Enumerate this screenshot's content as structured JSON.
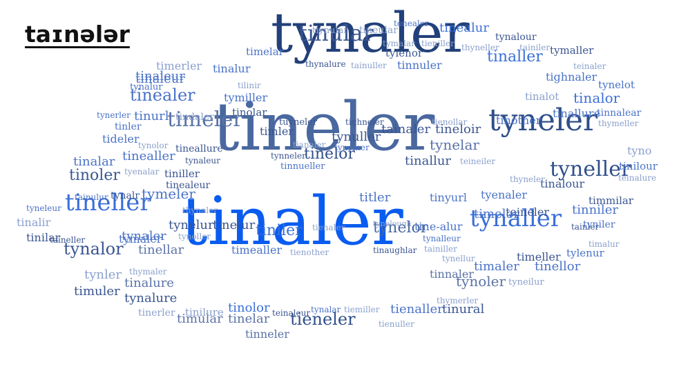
{
  "title": "taɪnələr",
  "palette": {
    "dark_navy": "#22407a",
    "navy": "#2f4f8a",
    "slate": "#4a68a0",
    "mid": "#5a7cc4",
    "royal": "#3a6fd8",
    "bright": "#0a5cf0",
    "light": "#8aa0cc",
    "pale": "#a6b6d6"
  },
  "words": [
    {
      "text": "tinaler",
      "size": 96,
      "color": "#0a5cf0"
    },
    {
      "text": "tineler",
      "size": 96,
      "color": "#4a68a0"
    },
    {
      "text": "tynaler",
      "size": 80,
      "color": "#22407a"
    },
    {
      "text": "tyneler",
      "size": 44,
      "color": "#2f4f8a"
    },
    {
      "text": "tinular",
      "size": 32,
      "color": "#3a5590"
    },
    {
      "text": "timeler",
      "size": 30,
      "color": "#5a72a6"
    },
    {
      "text": "tineller",
      "size": 34,
      "color": "#3a6fd8"
    },
    {
      "text": "tynaller",
      "size": 34,
      "color": "#3a6fd8"
    },
    {
      "text": "tyneller",
      "size": 30,
      "color": "#2f4f8a"
    },
    {
      "text": "tynalor",
      "size": 24,
      "color": "#3a5590"
    },
    {
      "text": "tieneler",
      "size": 24,
      "color": "#2f4f8a"
    },
    {
      "text": "tinealer",
      "size": 24,
      "color": "#4a72c8"
    },
    {
      "text": "tinoler",
      "size": 22,
      "color": "#3a5590"
    },
    {
      "text": "tinaller",
      "size": 22,
      "color": "#3a6fd8"
    },
    {
      "text": "tinelor",
      "size": 22,
      "color": "#2f4f8a"
    },
    {
      "text": "tiniler",
      "size": 22,
      "color": "#3a6fd8"
    },
    {
      "text": "tynelor",
      "size": 22,
      "color": "#4a68a0"
    },
    {
      "text": "tinealur",
      "size": 18,
      "color": "#3a6fd8"
    },
    {
      "text": "tinalor",
      "size": 20,
      "color": "#3a6fd8"
    },
    {
      "text": "tymeler",
      "size": 20,
      "color": "#4a72c8"
    },
    {
      "text": "tinealler",
      "size": 18,
      "color": "#4a72c8"
    },
    {
      "text": "tinaleur",
      "size": 18,
      "color": "#4a72c8"
    },
    {
      "text": "tinurl",
      "size": 18,
      "color": "#4a72c8"
    },
    {
      "text": "tinalar",
      "size": 18,
      "color": "#4a72c8"
    },
    {
      "text": "tinalure",
      "size": 18,
      "color": "#5a72a6"
    },
    {
      "text": "tynalure",
      "size": 18,
      "color": "#3a5590"
    },
    {
      "text": "timular",
      "size": 18,
      "color": "#5a72a6"
    },
    {
      "text": "tinelar",
      "size": 18,
      "color": "#5a72a6"
    },
    {
      "text": "tinneler",
      "size": 16,
      "color": "#5a72a6"
    },
    {
      "text": "timuler",
      "size": 18,
      "color": "#3a5590"
    },
    {
      "text": "tynler",
      "size": 18,
      "color": "#8aa0cc"
    },
    {
      "text": "tinellar",
      "size": 18,
      "color": "#5a72a6"
    },
    {
      "text": "tynaler",
      "size": 18,
      "color": "#4a72c8"
    },
    {
      "text": "timealler",
      "size": 16,
      "color": "#4a72c8"
    },
    {
      "text": "tinelur",
      "size": 18,
      "color": "#3a5590"
    },
    {
      "text": "tynelur",
      "size": 18,
      "color": "#3a5590"
    },
    {
      "text": "titler",
      "size": 18,
      "color": "#4a72c8"
    },
    {
      "text": "tinyurl",
      "size": 16,
      "color": "#4a72c8"
    },
    {
      "text": "tinallur",
      "size": 18,
      "color": "#3a5590"
    },
    {
      "text": "tynelar",
      "size": 20,
      "color": "#5a72a6"
    },
    {
      "text": "tainaler",
      "size": 18,
      "color": "#3a5590"
    },
    {
      "text": "tineloir",
      "size": 18,
      "color": "#3a5590"
    },
    {
      "text": "tynuller",
      "size": 18,
      "color": "#3a5590"
    },
    {
      "text": "tinolor",
      "size": 18,
      "color": "#3a6fd8"
    },
    {
      "text": "tinural",
      "size": 18,
      "color": "#3a5590"
    },
    {
      "text": "tienaller",
      "size": 18,
      "color": "#4a72c8"
    },
    {
      "text": "tynoler",
      "size": 20,
      "color": "#5a72a6"
    },
    {
      "text": "timaler",
      "size": 18,
      "color": "#4a72c8"
    },
    {
      "text": "tinellor",
      "size": 18,
      "color": "#4a72c8"
    },
    {
      "text": "timeller",
      "size": 16,
      "color": "#3a5590"
    },
    {
      "text": "tylenur",
      "size": 15,
      "color": "#4a72c8"
    },
    {
      "text": "tinniler",
      "size": 18,
      "color": "#4a72c8"
    },
    {
      "text": "tinnaler",
      "size": 16,
      "color": "#5a72a6"
    },
    {
      "text": "teineler",
      "size": 16,
      "color": "#3a5590"
    },
    {
      "text": "timelor",
      "size": 18,
      "color": "#4a72c8"
    },
    {
      "text": "tyenaler",
      "size": 16,
      "color": "#4a72c8"
    },
    {
      "text": "tinalour",
      "size": 16,
      "color": "#3a5590"
    },
    {
      "text": "timmilar",
      "size": 15,
      "color": "#3a5590"
    },
    {
      "text": "tinilour",
      "size": 15,
      "color": "#4a72c8"
    },
    {
      "text": "teinalure",
      "size": 12,
      "color": "#8aa0cc"
    },
    {
      "text": "tyno",
      "size": 16,
      "color": "#8aa0cc"
    },
    {
      "text": "tinother",
      "size": 16,
      "color": "#4a72c8"
    },
    {
      "text": "tinallure",
      "size": 16,
      "color": "#4a72c8"
    },
    {
      "text": "tinnalear",
      "size": 14,
      "color": "#4a72c8"
    },
    {
      "text": "thymeller",
      "size": 12,
      "color": "#8aa0cc"
    },
    {
      "text": "tighnaler",
      "size": 16,
      "color": "#4a72c8"
    },
    {
      "text": "tynelot",
      "size": 15,
      "color": "#4a72c8"
    },
    {
      "text": "tinalot",
      "size": 15,
      "color": "#8aa0cc"
    },
    {
      "text": "teinaler",
      "size": 12,
      "color": "#8aa0cc"
    },
    {
      "text": "tymaller",
      "size": 15,
      "color": "#3a5590"
    },
    {
      "text": "tainiler",
      "size": 12,
      "color": "#8aa0cc"
    },
    {
      "text": "thyneller",
      "size": 12,
      "color": "#8aa0cc"
    },
    {
      "text": "tynalour",
      "size": 14,
      "color": "#3a5590"
    },
    {
      "text": "tineular",
      "size": 14,
      "color": "#8aa0cc"
    },
    {
      "text": "tiynular",
      "size": 13,
      "color": "#8aa0cc"
    },
    {
      "text": "tonealer",
      "size": 12,
      "color": "#4a72c8"
    },
    {
      "text": "tymalar",
      "size": 12,
      "color": "#8aa0cc"
    },
    {
      "text": "tieniller",
      "size": 12,
      "color": "#8aa0cc"
    },
    {
      "text": "tylenor",
      "size": 15,
      "color": "#3a5590"
    },
    {
      "text": "tinnuler",
      "size": 16,
      "color": "#4a72c8"
    },
    {
      "text": "thynalure",
      "size": 12,
      "color": "#3a5590"
    },
    {
      "text": "tainuller",
      "size": 12,
      "color": "#8aa0cc"
    },
    {
      "text": "timelar",
      "size": 15,
      "color": "#4a72c8"
    },
    {
      "text": "timerler",
      "size": 16,
      "color": "#8aa0cc"
    },
    {
      "text": "tinalur",
      "size": 16,
      "color": "#4a72c8"
    },
    {
      "text": "tynalur",
      "size": 13,
      "color": "#4a72c8"
    },
    {
      "text": "tinaleur",
      "size": 18,
      "color": "#4a72c8"
    },
    {
      "text": "tilinir",
      "size": 12,
      "color": "#8aa0cc"
    },
    {
      "text": "tymiller",
      "size": 16,
      "color": "#4a72c8"
    },
    {
      "text": "tynerler",
      "size": 12,
      "color": "#4a72c8"
    },
    {
      "text": "tindaler",
      "size": 14,
      "color": "#8aa0cc"
    },
    {
      "text": "tinolar",
      "size": 15,
      "color": "#3a5590"
    },
    {
      "text": "tinler",
      "size": 14,
      "color": "#4a72c8"
    },
    {
      "text": "tideler",
      "size": 16,
      "color": "#4a72c8"
    },
    {
      "text": "tynolor",
      "size": 12,
      "color": "#8aa0cc"
    },
    {
      "text": "tineallure",
      "size": 14,
      "color": "#3a5590"
    },
    {
      "text": "tynaleur",
      "size": 12,
      "color": "#3a5590"
    },
    {
      "text": "tyenalar",
      "size": 12,
      "color": "#8aa0cc"
    },
    {
      "text": "tiniller",
      "size": 15,
      "color": "#3a5590"
    },
    {
      "text": "tinealeur",
      "size": 14,
      "color": "#3a5590"
    },
    {
      "text": "tainulur",
      "size": 12,
      "color": "#4a72c8"
    },
    {
      "text": "tynalr",
      "size": 14,
      "color": "#3a5590"
    },
    {
      "text": "thynaler",
      "size": 12,
      "color": "#8aa0cc"
    },
    {
      "text": "tyneleur",
      "size": 12,
      "color": "#4a72c8"
    },
    {
      "text": "tinalir",
      "size": 16,
      "color": "#8aa0cc"
    },
    {
      "text": "tinilar",
      "size": 16,
      "color": "#3a5590"
    },
    {
      "text": "taineller",
      "size": 12,
      "color": "#3a5590"
    },
    {
      "text": "tymaler",
      "size": 16,
      "color": "#4a72c8"
    },
    {
      "text": "tynoller",
      "size": 12,
      "color": "#8aa0cc"
    },
    {
      "text": "tienaler",
      "size": 12,
      "color": "#8aa0cc"
    },
    {
      "text": "tienother",
      "size": 12,
      "color": "#8aa0cc"
    },
    {
      "text": "tuyneler",
      "size": 13,
      "color": "#3a5590"
    },
    {
      "text": "tighneler",
      "size": 12,
      "color": "#3a5590"
    },
    {
      "text": "tienollar",
      "size": 12,
      "color": "#8aa0cc"
    },
    {
      "text": "timler",
      "size": 16,
      "color": "#3a5590"
    },
    {
      "text": "tianaler",
      "size": 12,
      "color": "#8aa0cc"
    },
    {
      "text": "tynomer",
      "size": 12,
      "color": "#4a72c8"
    },
    {
      "text": "tynneler",
      "size": 12,
      "color": "#3a5590"
    },
    {
      "text": "tinnueller",
      "size": 13,
      "color": "#4a72c8"
    },
    {
      "text": "teineiler",
      "size": 12,
      "color": "#8aa0cc"
    },
    {
      "text": "thyneler",
      "size": 12,
      "color": "#8aa0cc"
    },
    {
      "text": "tainler",
      "size": 12,
      "color": "#3a5590"
    },
    {
      "text": "tyniler",
      "size": 14,
      "color": "#4a72c8"
    },
    {
      "text": "timalur",
      "size": 12,
      "color": "#8aa0cc"
    },
    {
      "text": "tynelough",
      "size": 11,
      "color": "#8aa0cc"
    },
    {
      "text": "tine-alur",
      "size": 16,
      "color": "#4a72c8"
    },
    {
      "text": "tynalleur",
      "size": 12,
      "color": "#4a72c8"
    },
    {
      "text": "tinaughlar",
      "size": 12,
      "color": "#3a5590"
    },
    {
      "text": "tainiller",
      "size": 12,
      "color": "#8aa0cc"
    },
    {
      "text": "tynellur",
      "size": 12,
      "color": "#8aa0cc"
    },
    {
      "text": "thymerler",
      "size": 12,
      "color": "#8aa0cc"
    },
    {
      "text": "tyneilur",
      "size": 13,
      "color": "#8aa0cc"
    },
    {
      "text": "tinerler",
      "size": 14,
      "color": "#8aa0cc"
    },
    {
      "text": "tinilure",
      "size": 15,
      "color": "#8aa0cc"
    },
    {
      "text": "teinaleur",
      "size": 12,
      "color": "#3a5590"
    },
    {
      "text": "tynalar",
      "size": 12,
      "color": "#4a72c8"
    },
    {
      "text": "tiemiller",
      "size": 12,
      "color": "#8aa0cc"
    },
    {
      "text": "tienuller",
      "size": 12,
      "color": "#8aa0cc"
    },
    {
      "text": "thymaler",
      "size": 12,
      "color": "#8aa0cc"
    }
  ]
}
